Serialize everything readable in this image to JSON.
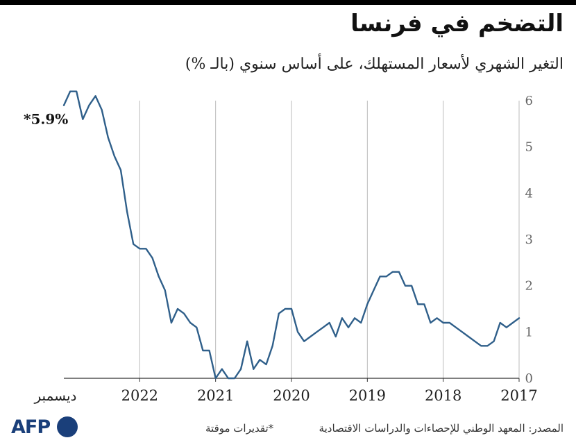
{
  "header": {
    "title": "التضخم في فرنسا",
    "subtitle": "التغير الشهري لأسعار المستهلك، على أساس سنوي (بالـ %)"
  },
  "footer": {
    "source": "المصدر: المعهد الوطني للإحصاءات والدراسات الاقتصادية",
    "note": "*تقديرات موقتة",
    "logo": "AFP"
  },
  "colors": {
    "line": "#2f5f8a",
    "grid": "#bbbbbb",
    "text": "#222222"
  },
  "chart_data": {
    "type": "line",
    "title": "التضخم في فرنسا",
    "ylabel": "",
    "xlabel": "",
    "ylim": [
      0,
      6
    ],
    "yticks": [
      0,
      1,
      2,
      3,
      4,
      5,
      6
    ],
    "x_tick_labels": [
      "2017",
      "2018",
      "2019",
      "2020",
      "2021",
      "2022",
      "ديسمبر"
    ],
    "annotation": "*5.9%",
    "grid": "vertical",
    "series": [
      {
        "values": [
          1.3,
          1.2,
          1.1,
          1.2,
          0.8,
          0.7,
          0.7,
          0.8,
          0.9,
          1.0,
          1.1,
          1.2,
          1.2,
          1.3,
          1.2,
          1.6,
          1.6,
          2.0,
          2.0,
          2.3,
          2.3,
          2.2,
          2.2,
          1.9,
          1.6,
          1.2,
          1.3,
          1.1,
          1.3,
          0.9,
          1.2,
          1.1,
          1.0,
          0.9,
          0.8,
          1.0,
          1.5,
          1.5,
          1.4,
          0.7,
          0.3,
          0.4,
          0.2,
          0.8,
          0.2,
          0.0,
          0.0,
          0.2,
          0.0,
          0.6,
          0.6,
          1.1,
          1.2,
          1.4,
          1.5,
          1.2,
          1.9,
          2.2,
          2.6,
          2.8,
          2.8,
          2.9,
          3.6,
          4.5,
          4.8,
          5.2,
          5.8,
          6.1,
          5.9,
          5.6,
          6.2,
          6.2,
          5.9
        ]
      }
    ]
  }
}
